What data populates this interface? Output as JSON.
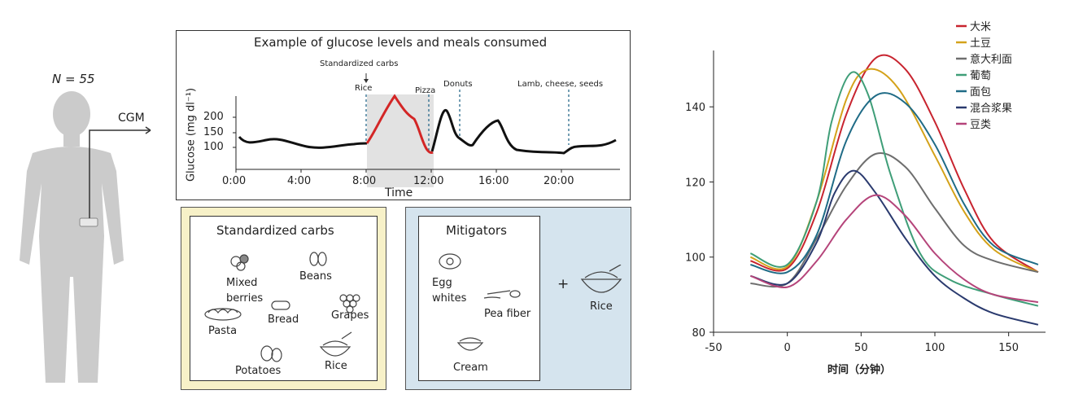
{
  "left_panel": {
    "n_label": "N = 55",
    "cgm_label": "CGM"
  },
  "glucose_panel": {
    "title": "Example of glucose levels and meals consumed",
    "ylabel": "Glucose (mg dl⁻¹)",
    "xlabel": "Time",
    "y_ticks": [
      "200",
      "150",
      "100"
    ],
    "x_ticks": [
      "0:00",
      "4:00",
      "8:00",
      "12:00",
      "16:00",
      "20:00"
    ],
    "annotations": {
      "standardized": "Standardized carbs",
      "rice": "Rice",
      "pizza": "Pizza",
      "donuts": "Donuts",
      "lamb": "Lamb, cheese, seeds"
    }
  },
  "carbs_box": {
    "title": "Standardized carbs",
    "items": [
      "Mixed berries",
      "Beans",
      "Bread",
      "Grapes",
      "Pasta",
      "Potatoes",
      "Rice"
    ]
  },
  "mitigators_box": {
    "title": "Mitigators",
    "items": [
      "Egg whites",
      "Pea fiber",
      "Cream"
    ],
    "plus": "+",
    "rice": "Rice"
  },
  "chart_data": {
    "type": "line",
    "xlabel": "时间（分钟）",
    "ylabel": "",
    "xlim": [
      -50,
      175
    ],
    "ylim": [
      80,
      155
    ],
    "x_ticks": [
      -50,
      0,
      50,
      100,
      150
    ],
    "y_ticks": [
      80,
      100,
      120,
      140
    ],
    "legend_position": "top-right",
    "series": [
      {
        "name": "大米",
        "color": "#c8242f",
        "x": [
          -25,
          0,
          20,
          40,
          60,
          80,
          100,
          120,
          140,
          170
        ],
        "y": [
          99,
          97,
          112,
          138,
          153,
          150,
          136,
          118,
          104,
          96
        ]
      },
      {
        "name": "土豆",
        "color": "#d4a21a",
        "x": [
          -25,
          0,
          20,
          40,
          55,
          75,
          100,
          120,
          140,
          170
        ],
        "y": [
          100,
          97.5,
          115,
          142,
          150,
          145,
          127,
          112,
          102,
          96
        ]
      },
      {
        "name": "意大利面",
        "color": "#6e6e6e",
        "x": [
          -25,
          0,
          20,
          40,
          60,
          80,
          100,
          120,
          140,
          170
        ],
        "y": [
          93,
          93,
          105,
          119,
          127.5,
          124,
          113,
          103,
          99,
          96
        ]
      },
      {
        "name": "葡萄",
        "color": "#3f9e78",
        "x": [
          -25,
          0,
          20,
          30,
          43,
          55,
          70,
          90,
          110,
          140,
          170
        ],
        "y": [
          101,
          98,
          115,
          136,
          149,
          143,
          122,
          101,
          94,
          90,
          87
        ]
      },
      {
        "name": "面包",
        "color": "#1f6b86",
        "x": [
          -25,
          0,
          20,
          40,
          60,
          80,
          100,
          120,
          140,
          170
        ],
        "y": [
          98,
          96,
          106,
          131,
          143,
          141,
          130,
          114,
          103,
          98
        ]
      },
      {
        "name": "混合浆果",
        "color": "#2a3a6e",
        "x": [
          -25,
          0,
          20,
          32,
          45,
          60,
          80,
          100,
          120,
          140,
          170
        ],
        "y": [
          95,
          93,
          104,
          117,
          123,
          117,
          105,
          95,
          89,
          85,
          82
        ]
      },
      {
        "name": "豆类",
        "color": "#b5447a",
        "x": [
          -25,
          0,
          20,
          40,
          60,
          80,
          100,
          120,
          140,
          170
        ],
        "y": [
          95,
          92,
          99,
          110,
          116.5,
          111,
          101,
          94,
          90,
          88
        ]
      }
    ]
  }
}
